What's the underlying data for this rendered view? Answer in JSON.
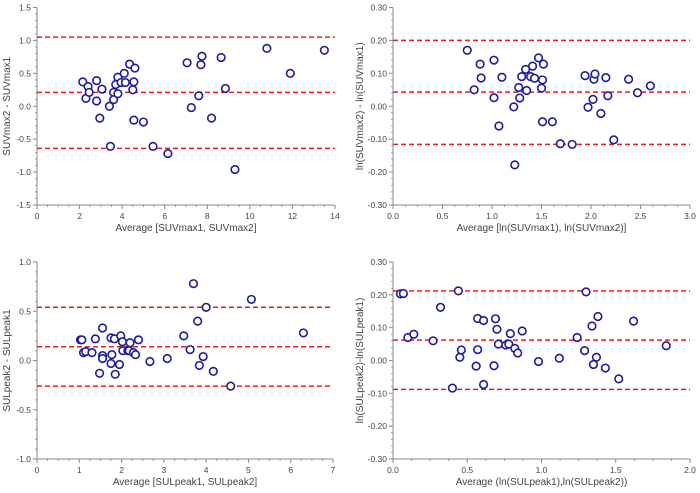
{
  "colors": {
    "marker": "#1c1c9c",
    "limit_line": "#ee1c1c",
    "axis": "#888888"
  },
  "chart_data": [
    {
      "type": "scatter",
      "title": "",
      "xlabel": "Average [SUVmax1, SUVmax2]",
      "ylabel": "SUVmax2 - SUVmax1",
      "xlim": [
        0,
        14
      ],
      "ylim": [
        -1.5,
        1.5
      ],
      "xticks": [
        0,
        2,
        4,
        6,
        8,
        10,
        12,
        14
      ],
      "yticks": [
        -1.5,
        -1.0,
        -0.5,
        0.0,
        0.5,
        1.0,
        1.5
      ],
      "xtick_labels": [
        "0",
        "2",
        "4",
        "6",
        "8",
        "10",
        "12",
        "14"
      ],
      "ytick_labels": [
        "-1.5",
        "-1.0",
        "-0.5",
        "0.0",
        "0.5",
        "1.0",
        "1.5"
      ],
      "grid": false,
      "reference_lines": {
        "upper_loa": 1.05,
        "mean_difference": 0.21,
        "lower_loa": -0.64
      },
      "points": [
        [
          2.15,
          0.37
        ],
        [
          2.3,
          0.12
        ],
        [
          2.4,
          0.3
        ],
        [
          2.45,
          0.21
        ],
        [
          2.8,
          0.08
        ],
        [
          2.8,
          0.39
        ],
        [
          2.95,
          -0.18
        ],
        [
          3.05,
          0.26
        ],
        [
          3.4,
          0.0
        ],
        [
          3.45,
          -0.61
        ],
        [
          3.6,
          0.21
        ],
        [
          3.6,
          0.1
        ],
        [
          3.7,
          0.33
        ],
        [
          3.8,
          0.44
        ],
        [
          3.8,
          0.19
        ],
        [
          3.95,
          0.36
        ],
        [
          4.1,
          0.5
        ],
        [
          4.15,
          0.36
        ],
        [
          4.35,
          0.64
        ],
        [
          4.5,
          0.25
        ],
        [
          4.55,
          -0.21
        ],
        [
          4.55,
          0.37
        ],
        [
          4.6,
          0.58
        ],
        [
          5.0,
          -0.24
        ],
        [
          5.45,
          -0.61
        ],
        [
          6.15,
          -0.72
        ],
        [
          7.05,
          0.66
        ],
        [
          7.25,
          -0.02
        ],
        [
          7.6,
          0.16
        ],
        [
          7.7,
          0.63
        ],
        [
          7.75,
          0.76
        ],
        [
          8.2,
          -0.18
        ],
        [
          8.65,
          0.74
        ],
        [
          8.85,
          0.27
        ],
        [
          9.3,
          -0.96
        ],
        [
          10.8,
          0.88
        ],
        [
          11.9,
          0.5
        ],
        [
          13.5,
          0.85
        ]
      ]
    },
    {
      "type": "scatter",
      "title": "",
      "xlabel": "Average [ln(SUVmax1), ln(SUVmax2)]",
      "ylabel": "ln(SUVmax2) - ln(SUVmax1)",
      "xlim": [
        0,
        3
      ],
      "ylim": [
        -0.3,
        0.3
      ],
      "xticks": [
        0,
        0.5,
        1.0,
        1.5,
        2.0,
        2.5,
        3.0
      ],
      "yticks": [
        -0.3,
        -0.2,
        -0.1,
        0.0,
        0.1,
        0.2,
        0.3
      ],
      "xtick_labels": [
        "0.0",
        "0.5",
        "1.0",
        "1.5",
        "2.0",
        "2.5",
        "3.0"
      ],
      "ytick_labels": [
        "-0.30",
        "-0.20",
        "-0.10",
        "0.00",
        "0.10",
        "0.20",
        "0.30"
      ],
      "grid": false,
      "reference_lines": {
        "upper_loa": 0.2,
        "mean_difference": 0.043,
        "lower_loa": -0.116
      },
      "points": [
        [
          0.75,
          0.17
        ],
        [
          0.82,
          0.05
        ],
        [
          0.88,
          0.128
        ],
        [
          0.89,
          0.086
        ],
        [
          1.02,
          0.14
        ],
        [
          1.02,
          0.026
        ],
        [
          1.07,
          -0.06
        ],
        [
          1.1,
          0.088
        ],
        [
          1.22,
          -0.002
        ],
        [
          1.23,
          -0.178
        ],
        [
          1.27,
          0.057
        ],
        [
          1.28,
          0.025
        ],
        [
          1.3,
          0.09
        ],
        [
          1.34,
          0.112
        ],
        [
          1.35,
          0.048
        ],
        [
          1.39,
          0.09
        ],
        [
          1.41,
          0.122
        ],
        [
          1.43,
          0.085
        ],
        [
          1.47,
          0.147
        ],
        [
          1.5,
          0.055
        ],
        [
          1.51,
          0.08
        ],
        [
          1.52,
          0.128
        ],
        [
          1.51,
          -0.047
        ],
        [
          1.61,
          -0.047
        ],
        [
          1.69,
          -0.114
        ],
        [
          1.81,
          -0.116
        ],
        [
          1.94,
          0.093
        ],
        [
          1.97,
          -0.003
        ],
        [
          2.02,
          0.021
        ],
        [
          2.03,
          0.082
        ],
        [
          2.04,
          0.098
        ],
        [
          2.1,
          -0.022
        ],
        [
          2.15,
          0.087
        ],
        [
          2.17,
          0.032
        ],
        [
          2.23,
          -0.102
        ],
        [
          2.38,
          0.082
        ],
        [
          2.47,
          0.041
        ],
        [
          2.6,
          0.062
        ]
      ]
    },
    {
      "type": "scatter",
      "title": "",
      "xlabel": "Average [SULpeak1, SULpeak2]",
      "ylabel": "SULpeak2 - SULpeak1",
      "xlim": [
        0,
        7
      ],
      "ylim": [
        -1.0,
        1.0
      ],
      "xticks": [
        0,
        1,
        2,
        3,
        4,
        5,
        6,
        7
      ],
      "yticks": [
        -1.0,
        -0.5,
        0.0,
        0.5,
        1.0
      ],
      "xtick_labels": [
        "0",
        "1",
        "2",
        "3",
        "4",
        "5",
        "6",
        "7"
      ],
      "ytick_labels": [
        "-1.0",
        "-0.5",
        "0.0",
        "0.5",
        "1.0"
      ],
      "grid": false,
      "reference_lines": {
        "upper_loa": 0.54,
        "mean_difference": 0.14,
        "lower_loa": -0.26
      },
      "points": [
        [
          1.03,
          0.21
        ],
        [
          1.06,
          0.21
        ],
        [
          1.1,
          0.08
        ],
        [
          1.15,
          0.09
        ],
        [
          1.3,
          0.08
        ],
        [
          1.38,
          0.22
        ],
        [
          1.48,
          -0.13
        ],
        [
          1.55,
          0.33
        ],
        [
          1.55,
          0.05
        ],
        [
          1.55,
          0.02
        ],
        [
          1.75,
          0.23
        ],
        [
          1.75,
          -0.03
        ],
        [
          1.77,
          0.06
        ],
        [
          1.83,
          0.22
        ],
        [
          1.85,
          -0.14
        ],
        [
          1.95,
          -0.04
        ],
        [
          1.98,
          0.25
        ],
        [
          2.02,
          0.19
        ],
        [
          2.03,
          0.1
        ],
        [
          2.15,
          0.1
        ],
        [
          2.18,
          0.1
        ],
        [
          2.2,
          0.18
        ],
        [
          2.28,
          0.08
        ],
        [
          2.33,
          0.06
        ],
        [
          2.4,
          0.21
        ],
        [
          2.67,
          -0.01
        ],
        [
          3.08,
          0.02
        ],
        [
          3.47,
          0.25
        ],
        [
          3.62,
          0.11
        ],
        [
          3.7,
          0.78
        ],
        [
          3.8,
          0.4
        ],
        [
          3.84,
          -0.05
        ],
        [
          3.93,
          0.04
        ],
        [
          4.0,
          0.54
        ],
        [
          4.17,
          -0.11
        ],
        [
          4.58,
          -0.26
        ],
        [
          5.07,
          0.62
        ],
        [
          6.3,
          0.28
        ]
      ]
    },
    {
      "type": "scatter",
      "title": "",
      "xlabel": "Average (ln(SULpeak1),ln(SULpeak2))",
      "ylabel": "ln(SULpeak2)-ln(SULpeak1)",
      "xlim": [
        0,
        2
      ],
      "ylim": [
        -0.3,
        0.3
      ],
      "xticks": [
        0,
        0.5,
        1.0,
        1.5,
        2.0
      ],
      "yticks": [
        -0.3,
        -0.2,
        -0.1,
        0.0,
        0.1,
        0.2,
        0.3
      ],
      "xtick_labels": [
        "0.0",
        "0.5",
        "1.0",
        "1.5",
        "2.0"
      ],
      "ytick_labels": [
        "-0.30",
        "-0.20",
        "-0.10",
        "0.00",
        "0.10",
        "0.20",
        "0.30"
      ],
      "grid": false,
      "reference_lines": {
        "upper_loa": 0.212,
        "mean_difference": 0.062,
        "lower_loa": -0.088
      },
      "points": [
        [
          0.05,
          0.203
        ],
        [
          0.07,
          0.204
        ],
        [
          0.1,
          0.07
        ],
        [
          0.14,
          0.08
        ],
        [
          0.27,
          0.06
        ],
        [
          0.32,
          0.162
        ],
        [
          0.4,
          -0.084
        ],
        [
          0.44,
          0.212
        ],
        [
          0.45,
          0.01
        ],
        [
          0.46,
          0.032
        ],
        [
          0.56,
          -0.017
        ],
        [
          0.57,
          0.033
        ],
        [
          0.57,
          0.128
        ],
        [
          0.61,
          0.122
        ],
        [
          0.61,
          -0.073
        ],
        [
          0.68,
          -0.016
        ],
        [
          0.69,
          0.127
        ],
        [
          0.7,
          0.095
        ],
        [
          0.71,
          0.05
        ],
        [
          0.76,
          0.047
        ],
        [
          0.78,
          0.05
        ],
        [
          0.79,
          0.082
        ],
        [
          0.82,
          0.037
        ],
        [
          0.84,
          0.023
        ],
        [
          0.87,
          0.09
        ],
        [
          0.98,
          -0.003
        ],
        [
          1.12,
          0.007
        ],
        [
          1.24,
          0.07
        ],
        [
          1.29,
          0.03
        ],
        [
          1.3,
          0.209
        ],
        [
          1.34,
          0.105
        ],
        [
          1.35,
          -0.012
        ],
        [
          1.37,
          0.01
        ],
        [
          1.38,
          0.134
        ],
        [
          1.43,
          -0.023
        ],
        [
          1.52,
          -0.056
        ],
        [
          1.62,
          0.12
        ],
        [
          1.84,
          0.045
        ]
      ]
    }
  ]
}
